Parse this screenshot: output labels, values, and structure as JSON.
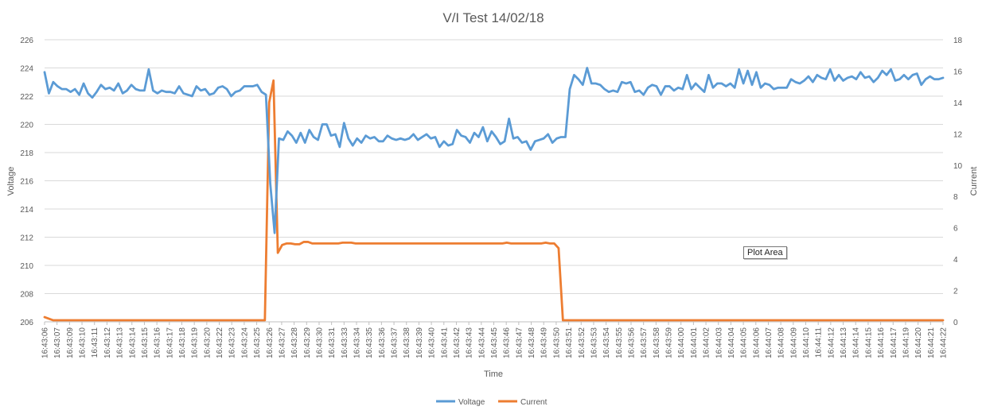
{
  "chart_data": {
    "type": "line",
    "title": "V/I Test 14/02/18",
    "xlabel": "Time",
    "ylabel_left": "Voltage",
    "ylabel_right": "Current",
    "ylim_left": [
      206,
      226
    ],
    "ylim_right": [
      0,
      18
    ],
    "yticks_left": [
      206,
      208,
      210,
      212,
      214,
      216,
      218,
      220,
      222,
      224,
      226
    ],
    "yticks_right": [
      0,
      2,
      4,
      6,
      8,
      10,
      12,
      14,
      16,
      18
    ],
    "grid": "horizontal",
    "legend": "bottom",
    "x_tick_labels": [
      "16:43:06",
      "16:43:07",
      "16:43:09",
      "16:43:10",
      "16:43:11",
      "16:43:12",
      "16:43:13",
      "16:43:14",
      "16:43:15",
      "16:43:16",
      "16:43:17",
      "16:43:18",
      "16:43:19",
      "16:43:20",
      "16:43:22",
      "16:43:23",
      "16:43:24",
      "16:43:25",
      "16:43:26",
      "16:43:27",
      "16:43:28",
      "16:43:29",
      "16:43:30",
      "16:43:31",
      "16:43:33",
      "16:43:34",
      "16:43:35",
      "16:43:36",
      "16:43:37",
      "16:43:38",
      "16:43:39",
      "16:43:40",
      "16:43:41",
      "16:43:42",
      "16:43:43",
      "16:43:44",
      "16:43:45",
      "16:43:46",
      "16:43:47",
      "16:43:48",
      "16:43:49",
      "16:43:50",
      "16:43:51",
      "16:43:52",
      "16:43:53",
      "16:43:54",
      "16:43:55",
      "16:43:56",
      "16:43:57",
      "16:43:58",
      "16:43:59",
      "16:44:00",
      "16:44:01",
      "16:44:02",
      "16:44:03",
      "16:44:04",
      "16:44:05",
      "16:44:06",
      "16:44:07",
      "16:44:08",
      "16:44:09",
      "16:44:10",
      "16:44:11",
      "16:44:12",
      "16:44:13",
      "16:44:14",
      "16:44:15",
      "16:44:16",
      "16:44:17",
      "16:44:19",
      "16:44:20",
      "16:44:21",
      "16:44:22"
    ],
    "series": [
      {
        "name": "Voltage",
        "axis": "left",
        "color": "#5B9BD5",
        "values": [
          223.7,
          222.2,
          223.0,
          222.7,
          222.5,
          222.5,
          222.3,
          222.5,
          222.1,
          222.9,
          222.2,
          221.9,
          222.3,
          222.8,
          222.5,
          222.6,
          222.4,
          222.9,
          222.2,
          222.4,
          222.8,
          222.5,
          222.4,
          222.4,
          223.9,
          222.4,
          222.2,
          222.4,
          222.3,
          222.3,
          222.2,
          222.7,
          222.2,
          222.1,
          222.0,
          222.7,
          222.4,
          222.5,
          222.1,
          222.2,
          222.6,
          222.7,
          222.5,
          222.0,
          222.3,
          222.4,
          222.7,
          222.7,
          222.7,
          222.8,
          222.3,
          222.1,
          215.8,
          212.3,
          219.0,
          218.9,
          219.5,
          219.2,
          218.7,
          219.4,
          218.7,
          219.6,
          219.1,
          218.9,
          220.0,
          220.0,
          219.2,
          219.3,
          218.4,
          220.1,
          219.0,
          218.5,
          219.0,
          218.7,
          219.2,
          219.0,
          219.1,
          218.8,
          218.8,
          219.2,
          219.0,
          218.9,
          219.0,
          218.9,
          219.0,
          219.3,
          218.9,
          219.1,
          219.3,
          219.0,
          219.1,
          218.4,
          218.8,
          218.5,
          218.6,
          219.6,
          219.2,
          219.1,
          218.7,
          219.4,
          219.1,
          219.8,
          218.8,
          219.5,
          219.1,
          218.6,
          218.8,
          220.4,
          219.0,
          219.1,
          218.7,
          218.8,
          218.2,
          218.8,
          218.9,
          219.0,
          219.3,
          218.7,
          219.0,
          219.1,
          219.1,
          222.5,
          223.5,
          223.2,
          222.8,
          224.0,
          222.9,
          222.9,
          222.8,
          222.5,
          222.3,
          222.4,
          222.3,
          223.0,
          222.9,
          223.0,
          222.3,
          222.4,
          222.1,
          222.6,
          222.8,
          222.7,
          222.1,
          222.7,
          222.7,
          222.4,
          222.6,
          222.5,
          223.5,
          222.5,
          222.9,
          222.6,
          222.3,
          223.5,
          222.6,
          222.9,
          222.9,
          222.7,
          222.9,
          222.6,
          223.9,
          222.9,
          223.8,
          222.8,
          223.7,
          222.6,
          222.9,
          222.8,
          222.5,
          222.6,
          222.6,
          222.6,
          223.2,
          223.0,
          222.9,
          223.1,
          223.4,
          223.0,
          223.5,
          223.3,
          223.2,
          223.9,
          223.1,
          223.5,
          223.1,
          223.3,
          223.4,
          223.2,
          223.7,
          223.3,
          223.4,
          223.0,
          223.3,
          223.8,
          223.5,
          223.9,
          223.1,
          223.2,
          223.5,
          223.2,
          223.5,
          223.6,
          222.8,
          223.2,
          223.4,
          223.2,
          223.2,
          223.3
        ]
      },
      {
        "name": "Current",
        "axis": "right",
        "color": "#ED7D31",
        "values": [
          0.3,
          0.2,
          0.1,
          0.1,
          0.1,
          0.1,
          0.1,
          0.1,
          0.1,
          0.1,
          0.1,
          0.1,
          0.1,
          0.1,
          0.1,
          0.1,
          0.1,
          0.1,
          0.1,
          0.1,
          0.1,
          0.1,
          0.1,
          0.1,
          0.1,
          0.1,
          0.1,
          0.1,
          0.1,
          0.1,
          0.1,
          0.1,
          0.1,
          0.1,
          0.1,
          0.1,
          0.1,
          0.1,
          0.1,
          0.1,
          0.1,
          0.1,
          0.1,
          0.1,
          0.1,
          0.1,
          0.1,
          0.1,
          0.1,
          0.1,
          0.1,
          0.1,
          14.0,
          15.4,
          4.4,
          4.9,
          5.0,
          5.0,
          4.95,
          4.95,
          5.1,
          5.1,
          5.0,
          5.0,
          5.0,
          5.0,
          5.0,
          5.0,
          5.0,
          5.05,
          5.05,
          5.05,
          5.0,
          5.0,
          5.0,
          5.0,
          5.0,
          5.0,
          5.0,
          5.0,
          5.0,
          5.0,
          5.0,
          5.0,
          5.0,
          5.0,
          5.0,
          5.0,
          5.0,
          5.0,
          5.0,
          5.0,
          5.0,
          5.0,
          5.0,
          5.0,
          5.0,
          5.0,
          5.0,
          5.0,
          5.0,
          5.0,
          5.0,
          5.0,
          5.0,
          5.0,
          5.0,
          5.05,
          5.0,
          5.0,
          5.0,
          5.0,
          5.0,
          5.0,
          5.0,
          5.0,
          5.05,
          5.0,
          5.0,
          4.7,
          0.1,
          0.1,
          0.1,
          0.1,
          0.1,
          0.1,
          0.1,
          0.1,
          0.1,
          0.1,
          0.1,
          0.1,
          0.1,
          0.1,
          0.1,
          0.1,
          0.1,
          0.1,
          0.1,
          0.1,
          0.1,
          0.1,
          0.1,
          0.1,
          0.1,
          0.1,
          0.1,
          0.1,
          0.1,
          0.1,
          0.1,
          0.1,
          0.1,
          0.1,
          0.1,
          0.1,
          0.1,
          0.1,
          0.1,
          0.1,
          0.1,
          0.1,
          0.1,
          0.1,
          0.1,
          0.1,
          0.1,
          0.1,
          0.1,
          0.1,
          0.1,
          0.1,
          0.1,
          0.1,
          0.1,
          0.1,
          0.1,
          0.1,
          0.1,
          0.1,
          0.1,
          0.1,
          0.1,
          0.1,
          0.1,
          0.1,
          0.1,
          0.1,
          0.1,
          0.1,
          0.1,
          0.1,
          0.1,
          0.1,
          0.1,
          0.1,
          0.1,
          0.1,
          0.1,
          0.1,
          0.1,
          0.1,
          0.1,
          0.1,
          0.1,
          0.1,
          0.1,
          0.1,
          0.1
        ]
      }
    ]
  },
  "tooltip": {
    "text": "Plot Area"
  }
}
